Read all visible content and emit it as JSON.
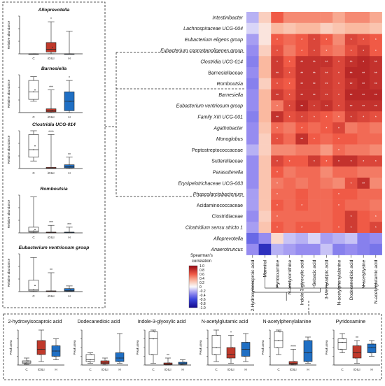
{
  "heatmap": {
    "rows": [
      {
        "label": "Intestinibacter",
        "italic": true
      },
      {
        "label": "Lachnospiraceae UCG-004",
        "italic": true
      },
      {
        "label": "Eubacterium eligens group",
        "italic": true
      },
      {
        "label": "Eubacterium coprostanoligenes group",
        "italic": true
      },
      {
        "label": "Clostridia UCG-014",
        "italic": true
      },
      {
        "label": "Barnesiellaceae",
        "italic": false
      },
      {
        "label": "Romboutsia",
        "italic": true
      },
      {
        "label": "Barnesiella",
        "italic": true
      },
      {
        "label": "Eubacterium ventriosum group",
        "italic": true
      },
      {
        "label": "Family XIII UCG-001",
        "italic": true
      },
      {
        "label": "Agathobacter",
        "italic": true
      },
      {
        "label": "Monoglobus",
        "italic": true
      },
      {
        "label": "Peptostreptococcaceae",
        "italic": false
      },
      {
        "label": "Sutterellaceae",
        "italic": false
      },
      {
        "label": "Parasutterella",
        "italic": true
      },
      {
        "label": "Erysipelotrichaceae UCG-003",
        "italic": true
      },
      {
        "label": "Phascolarctobacterium",
        "italic": true
      },
      {
        "label": "Acidaminococcaceae",
        "italic": false
      },
      {
        "label": "Clostridiaceae",
        "italic": false
      },
      {
        "label": "Clostridium sensu stricto 1",
        "italic": true
      },
      {
        "label": "Alloprevotella",
        "italic": true
      },
      {
        "label": "Anaerotruncus",
        "italic": true
      }
    ],
    "columns": [
      "2-Hydroxyisocaproic acid",
      "Mannitol",
      "Pyridoxamine",
      "N-acetylornithine",
      "Indole-3-glyoxylic acid",
      "Sebacic acid",
      "3-Methyladipic acid",
      "N-acetylphenylalanine",
      "Dodecanedioic acid",
      "N-acetyllysine",
      "N-acetylglutamic acid"
    ],
    "values": [
      [
        -0.2,
        0.2,
        0.6,
        0.45,
        0.45,
        0.45,
        0.45,
        0.35,
        0.45,
        0.45,
        0.35
      ],
      [
        -0.1,
        0.1,
        0.3,
        0.25,
        0.3,
        0.3,
        0.2,
        0.25,
        0.3,
        0.3,
        0.25
      ],
      [
        -0.25,
        0.1,
        0.6,
        0.55,
        0.6,
        0.7,
        0.6,
        0.45,
        0.7,
        0.65,
        0.6
      ],
      [
        -0.3,
        0.2,
        0.65,
        0.5,
        0.6,
        0.7,
        0.55,
        0.5,
        0.65,
        0.75,
        0.6
      ],
      [
        -0.35,
        0.3,
        0.75,
        0.6,
        0.8,
        0.8,
        0.8,
        0.7,
        0.8,
        0.85,
        0.8
      ],
      [
        -0.3,
        0.3,
        0.75,
        0.65,
        0.8,
        0.8,
        0.75,
        0.7,
        0.85,
        0.85,
        0.8
      ],
      [
        -0.35,
        0.2,
        0.65,
        0.6,
        0.8,
        0.8,
        0.75,
        0.7,
        0.8,
        0.85,
        0.8
      ],
      [
        -0.3,
        0.3,
        0.75,
        0.65,
        0.8,
        0.8,
        0.75,
        0.7,
        0.85,
        0.85,
        0.85
      ],
      [
        -0.3,
        0.3,
        0.5,
        0.7,
        0.85,
        0.75,
        0.8,
        0.7,
        0.8,
        0.8,
        0.8
      ],
      [
        -0.35,
        0.3,
        0.8,
        0.65,
        0.7,
        0.65,
        0.6,
        0.55,
        0.75,
        0.7,
        0.65
      ],
      [
        -0.3,
        0.25,
        0.55,
        0.5,
        0.6,
        0.55,
        0.6,
        0.7,
        0.5,
        0.55,
        0.5
      ],
      [
        -0.3,
        0.2,
        0.65,
        0.55,
        0.8,
        0.6,
        0.55,
        0.6,
        0.6,
        0.55,
        0.55
      ],
      [
        -0.2,
        0.2,
        0.45,
        0.45,
        0.5,
        0.5,
        0.4,
        0.55,
        0.5,
        0.5,
        0.45
      ],
      [
        -0.3,
        0.25,
        0.7,
        0.6,
        0.6,
        0.75,
        0.6,
        0.8,
        0.8,
        0.7,
        0.7
      ],
      [
        -0.3,
        0.25,
        0.6,
        0.5,
        0.55,
        0.55,
        0.45,
        0.55,
        0.55,
        0.5,
        0.5
      ],
      [
        -0.3,
        0.25,
        0.5,
        0.55,
        0.5,
        0.55,
        0.5,
        0.45,
        0.65,
        0.8,
        0.45
      ],
      [
        -0.25,
        0.25,
        0.55,
        0.55,
        0.6,
        0.55,
        0.55,
        0.6,
        0.6,
        0.55,
        0.55
      ],
      [
        -0.25,
        0.25,
        0.6,
        0.55,
        0.6,
        0.55,
        0.55,
        0.6,
        0.55,
        0.55,
        0.5
      ],
      [
        -0.3,
        0.2,
        0.55,
        0.55,
        0.55,
        0.55,
        0.55,
        0.6,
        0.75,
        0.6,
        0.55
      ],
      [
        -0.25,
        0.25,
        0.6,
        0.55,
        0.6,
        0.6,
        0.55,
        0.6,
        0.75,
        0.6,
        0.7
      ],
      [
        -0.45,
        -0.3,
        0.15,
        -0.15,
        -0.2,
        -0.1,
        -0.25,
        -0.2,
        -0.15,
        -0.35,
        -0.3
      ],
      [
        -0.3,
        -0.75,
        -0.2,
        -0.25,
        -0.3,
        -0.3,
        -0.15,
        -0.35,
        -0.3,
        -0.35,
        -0.4
      ]
    ],
    "stars": [
      [
        "",
        "",
        "",
        "",
        "",
        "",
        "",
        "",
        "",
        "",
        ""
      ],
      [
        "",
        "",
        "",
        "",
        "",
        "",
        "",
        "",
        "",
        "",
        ""
      ],
      [
        "",
        "",
        "*",
        "",
        "*",
        "*",
        "*",
        "",
        "*",
        "*",
        "*"
      ],
      [
        "",
        "",
        "*",
        "",
        "*",
        "*",
        "*",
        "",
        "*",
        "*",
        "*"
      ],
      [
        "",
        "",
        "*",
        "*",
        "**",
        "**",
        "**",
        "*",
        "**",
        "*",
        "**"
      ],
      [
        "",
        "",
        "**",
        "*",
        "**",
        "**",
        "**",
        "*",
        "**",
        "**",
        "**"
      ],
      [
        "",
        "",
        "*",
        "*",
        "**",
        "**",
        "**",
        "*",
        "**",
        "**",
        "**"
      ],
      [
        "",
        "",
        "**",
        "*",
        "**",
        "**",
        "**",
        "*",
        "**",
        "**",
        "**"
      ],
      [
        "",
        "",
        "*",
        "*",
        "**",
        "*",
        "**",
        "*",
        "**",
        "**",
        "**"
      ],
      [
        "",
        "",
        "**",
        "*",
        "*",
        "*",
        "*",
        "*",
        "*",
        "*",
        "*"
      ],
      [
        "",
        "",
        "*",
        "",
        "*",
        "",
        "*",
        "*",
        "",
        "",
        ""
      ],
      [
        "",
        "",
        "*",
        "",
        "**",
        "*",
        "",
        "*",
        "",
        "",
        ""
      ],
      [
        "",
        "",
        "",
        "",
        "",
        "",
        "",
        "*",
        "",
        "",
        ""
      ],
      [
        "",
        "",
        "*",
        "*",
        "",
        "*",
        "*",
        "*",
        "*",
        "*",
        "*"
      ],
      [
        "",
        "",
        "*",
        "",
        "",
        "",
        "",
        "",
        "",
        "",
        ""
      ],
      [
        "",
        "",
        "*",
        "",
        "",
        "",
        "",
        "",
        "*",
        "**",
        ""
      ],
      [
        "",
        "",
        "*",
        "",
        "",
        "",
        "",
        "*",
        "",
        "",
        ""
      ],
      [
        "",
        "",
        "*",
        "",
        "*",
        "",
        "",
        "*",
        "",
        "",
        ""
      ],
      [
        "",
        "",
        "*",
        "",
        "",
        "",
        "",
        "",
        "*",
        "",
        "*"
      ],
      [
        "",
        "",
        "*",
        "",
        "*",
        "",
        "",
        "*",
        "*",
        "",
        "*"
      ],
      [
        "",
        "",
        "",
        "",
        "",
        "",
        "",
        "",
        "",
        "",
        ""
      ],
      [
        "",
        "",
        "",
        "",
        "",
        "",
        "",
        "",
        "",
        "",
        ""
      ]
    ]
  },
  "legend": {
    "title_line1": "Spearman's",
    "title_line2": "correlation",
    "ticks": [
      "1.0",
      "0.8",
      "0.6",
      "0.4",
      "0.2",
      "0",
      "-0.2",
      "-0.4",
      "-0.6",
      "-0.8",
      "-1.0"
    ]
  },
  "left_panels": {
    "axis_title": "Relative abundance",
    "groups": [
      "C",
      "iDILI",
      "H"
    ],
    "colors": {
      "C": "#ffffff",
      "iDILI": "#c0392b",
      "H": "#1f6fc4"
    },
    "panels": [
      {
        "title": "Alloprevotella",
        "sig": [
          "",
          "*",
          ""
        ]
      },
      {
        "title": "Barnesiella",
        "sig": [
          "",
          "***",
          "*"
        ]
      },
      {
        "title": "Clostridia UCG-014",
        "sig": [
          "",
          "****",
          "**"
        ]
      },
      {
        "title": "Romboutsia",
        "sig": [
          "",
          "***",
          "***"
        ]
      },
      {
        "title": "Eubacterium ventriosum group",
        "sig": [
          "",
          "**",
          ""
        ]
      }
    ]
  },
  "bottom_panels": {
    "axis_title": "Peak area",
    "groups": [
      "C",
      "iDILI",
      "H"
    ],
    "panels": [
      {
        "title": "2-hydroxyisocaproic acid",
        "sig": [
          "",
          "",
          ""
        ]
      },
      {
        "title": "Dodecanedioic acid",
        "sig": [
          "",
          "",
          ""
        ]
      },
      {
        "title": "Indole-3-glyoxylic acid",
        "sig": [
          "",
          "**",
          ""
        ]
      },
      {
        "title": "N-acetylglutamic acid",
        "sig": [
          "",
          "*",
          ""
        ]
      },
      {
        "title": "N-acetylphenylalanine",
        "sig": [
          "",
          "****",
          ""
        ]
      },
      {
        "title": "Pyridoxamine",
        "sig": [
          "",
          "**",
          ""
        ]
      }
    ]
  }
}
